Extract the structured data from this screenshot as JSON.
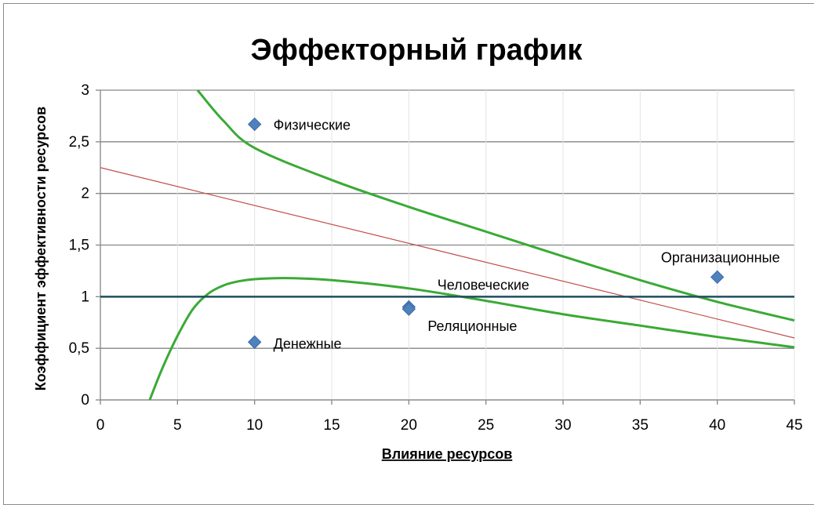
{
  "chart_data": {
    "type": "scatter",
    "title": "Эффекторный график",
    "xlabel": "Влияние ресурсов",
    "ylabel": "Коэффициент эффективности ресурсов",
    "xlim": [
      0,
      45
    ],
    "ylim": [
      0,
      3
    ],
    "x_ticks": [
      "0",
      "5",
      "10",
      "15",
      "20",
      "25",
      "30",
      "35",
      "40",
      "45"
    ],
    "y_ticks": [
      "0",
      "0,5",
      "1",
      "1,5",
      "2",
      "2,5",
      "3"
    ],
    "grid": true,
    "points": [
      {
        "label": "Физические",
        "x": 10,
        "y": 2.67
      },
      {
        "label": "Организационные",
        "x": 40,
        "y": 1.19
      },
      {
        "label": "Человеческие",
        "x": 20,
        "y": 0.9
      },
      {
        "label": "Реляционные",
        "x": 20,
        "y": 0.88
      },
      {
        "label": "Денежные",
        "x": 10,
        "y": 0.56
      }
    ],
    "lines": [
      {
        "kind": "upper-curve",
        "color": "#3aaa35",
        "points": [
          [
            6.3,
            3.0
          ],
          [
            8,
            2.7
          ],
          [
            10,
            2.44
          ],
          [
            15,
            2.13
          ],
          [
            20,
            1.87
          ],
          [
            25,
            1.63
          ],
          [
            30,
            1.39
          ],
          [
            35,
            1.16
          ],
          [
            40,
            0.95
          ],
          [
            45,
            0.77
          ]
        ]
      },
      {
        "kind": "lower-curve",
        "color": "#3aaa35",
        "points": [
          [
            3.2,
            0.0
          ],
          [
            4,
            0.3
          ],
          [
            5,
            0.62
          ],
          [
            6,
            0.88
          ],
          [
            7,
            1.03
          ],
          [
            8,
            1.11
          ],
          [
            9,
            1.15
          ],
          [
            10,
            1.17
          ],
          [
            12,
            1.18
          ],
          [
            15,
            1.16
          ],
          [
            20,
            1.08
          ],
          [
            25,
            0.96
          ],
          [
            30,
            0.83
          ],
          [
            35,
            0.72
          ],
          [
            40,
            0.61
          ],
          [
            45,
            0.51
          ]
        ]
      },
      {
        "kind": "straight-line",
        "color": "#c0504d",
        "points": [
          [
            0,
            2.25
          ],
          [
            45,
            0.6
          ]
        ]
      },
      {
        "kind": "baseline",
        "color": "#1f4e5f",
        "points": [
          [
            0,
            1.0
          ],
          [
            45,
            1.0
          ]
        ]
      }
    ],
    "colors": {
      "marker": "#4f81bd",
      "grid": "#868686",
      "green": "#3aaa35",
      "red": "#c0504d",
      "baseline": "#1f4e5f"
    }
  }
}
